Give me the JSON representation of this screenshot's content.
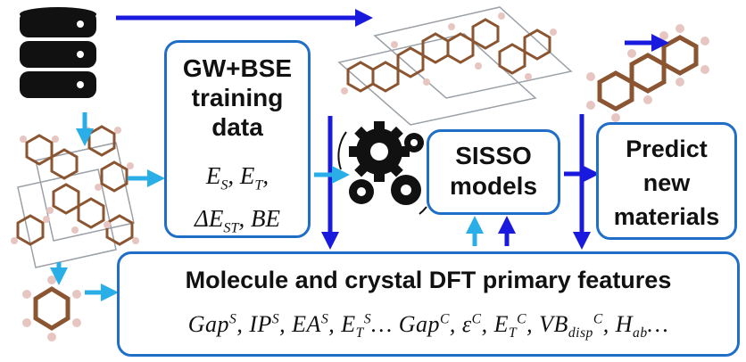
{
  "gw_box": {
    "title_lines": [
      "GW+BSE",
      "training",
      "data"
    ],
    "var_line_1": "E_S, E_T,",
    "var_line_2": "ΔE_ST, BE"
  },
  "sisso_box": {
    "lines": [
      "SISSO",
      "models"
    ]
  },
  "predict_box": {
    "lines": [
      "Predict",
      "new",
      "materials"
    ]
  },
  "features_box": {
    "title": "Molecule and crystal DFT primary features",
    "vars": "Gap^S, IP^S, EA^S, E_T^S… Gap^C, ε^C, E_T^C, VB_disp^C, H_ab…"
  },
  "colors": {
    "arrow_dark": "#1a1adf",
    "arrow_light": "#29aee8",
    "box_border": "#1f6fc8",
    "molecule_carbon": "#8a5530",
    "molecule_hydrogen": "#e7c6c2",
    "database": "#111111"
  },
  "icons": [
    "database-icon",
    "crystal-structure-icon",
    "benzene-molecule-icon",
    "gears-icon",
    "anthracene-molecule-icon"
  ]
}
